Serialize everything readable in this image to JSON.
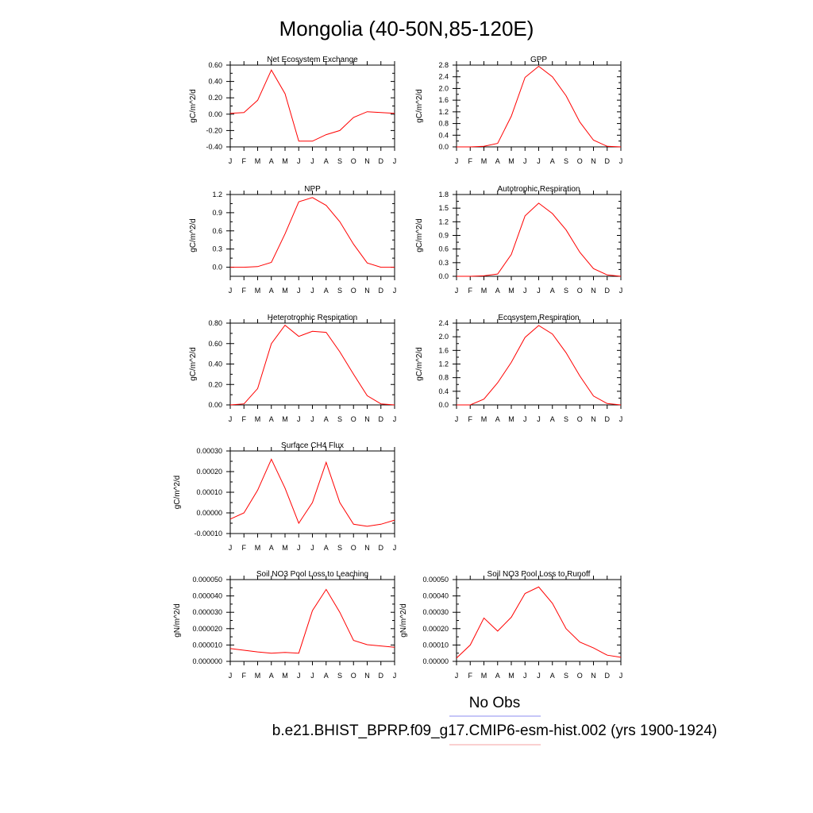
{
  "title": "Mongolia (40-50N,85-120E)",
  "month_labels": [
    "J",
    "F",
    "M",
    "A",
    "M",
    "J",
    "J",
    "A",
    "S",
    "O",
    "N",
    "D",
    "J"
  ],
  "colors": {
    "model": "#ff0000",
    "obs": "#8c8cf0",
    "model_legend": "#f4a0a0",
    "axis": "#000000"
  },
  "legend": {
    "obs_label": "No Obs",
    "model_label": "b.e21.BHIST_BPRP.f09_g17.CMIP6-esm-hist.002 (yrs 1900-1924)"
  },
  "chart_data": [
    {
      "type": "line",
      "title": "Net Ecosystem Exchange",
      "ylabel": "gC/m^2/d",
      "ylim": [
        -0.4,
        0.6
      ],
      "yticks": [
        -0.4,
        -0.2,
        0.0,
        0.2,
        0.4,
        0.6
      ],
      "ytick_labels": [
        "-0.40",
        "-0.20",
        "0.00",
        "0.20",
        "0.40",
        "0.60"
      ],
      "x": [
        "J",
        "F",
        "M",
        "A",
        "M",
        "J",
        "J",
        "A",
        "S",
        "O",
        "N",
        "D",
        "J"
      ],
      "values": [
        0.01,
        0.02,
        0.17,
        0.54,
        0.25,
        -0.33,
        -0.33,
        -0.25,
        -0.2,
        -0.04,
        0.03,
        0.02,
        0.01
      ]
    },
    {
      "type": "line",
      "title": "GPP",
      "ylabel": "gC/m^2/d",
      "ylim": [
        0.0,
        2.8
      ],
      "yticks": [
        0.0,
        0.4,
        0.8,
        1.2,
        1.6,
        2.0,
        2.4,
        2.8
      ],
      "ytick_labels": [
        "0.0",
        "0.4",
        "0.8",
        "1.2",
        "1.6",
        "2.0",
        "2.4",
        "2.8"
      ],
      "x": [
        "J",
        "F",
        "M",
        "A",
        "M",
        "J",
        "J",
        "A",
        "S",
        "O",
        "N",
        "D",
        "J"
      ],
      "values": [
        0.0,
        0.0,
        0.02,
        0.12,
        1.05,
        2.38,
        2.76,
        2.4,
        1.75,
        0.85,
        0.23,
        0.02,
        0.0
      ]
    },
    {
      "type": "line",
      "title": "NPP",
      "ylabel": "gC/m^2/d",
      "ylim": [
        -0.15,
        1.2
      ],
      "yticks": [
        0.0,
        0.3,
        0.6,
        0.9,
        1.2
      ],
      "ytick_labels": [
        "0.0",
        "0.3",
        "0.6",
        "0.9",
        "1.2"
      ],
      "x": [
        "J",
        "F",
        "M",
        "A",
        "M",
        "J",
        "J",
        "A",
        "S",
        "O",
        "N",
        "D",
        "J"
      ],
      "values": [
        0.0,
        0.0,
        0.01,
        0.08,
        0.55,
        1.08,
        1.15,
        1.02,
        0.75,
        0.38,
        0.07,
        0.0,
        0.0
      ]
    },
    {
      "type": "line",
      "title": "Autotrophic Respiration",
      "ylabel": "gC/m^2/d",
      "ylim": [
        0.0,
        1.8
      ],
      "yticks": [
        0.0,
        0.3,
        0.6,
        0.9,
        1.2,
        1.5,
        1.8
      ],
      "ytick_labels": [
        "0.0",
        "0.3",
        "0.6",
        "0.9",
        "1.2",
        "1.5",
        "1.8"
      ],
      "x": [
        "J",
        "F",
        "M",
        "A",
        "M",
        "J",
        "J",
        "A",
        "S",
        "O",
        "N",
        "D",
        "J"
      ],
      "values": [
        0.0,
        0.0,
        0.01,
        0.05,
        0.48,
        1.33,
        1.61,
        1.38,
        1.02,
        0.53,
        0.17,
        0.03,
        0.0
      ]
    },
    {
      "type": "line",
      "title": "Heterotrophic Respiration",
      "ylabel": "gC/m^2/d",
      "ylim": [
        0.0,
        0.8
      ],
      "yticks": [
        0.0,
        0.2,
        0.4,
        0.6,
        0.8
      ],
      "ytick_labels": [
        "0.00",
        "0.20",
        "0.40",
        "0.60",
        "0.80"
      ],
      "x": [
        "J",
        "F",
        "M",
        "A",
        "M",
        "J",
        "J",
        "A",
        "S",
        "O",
        "N",
        "D",
        "J"
      ],
      "values": [
        0.0,
        0.01,
        0.16,
        0.6,
        0.78,
        0.67,
        0.72,
        0.71,
        0.52,
        0.3,
        0.09,
        0.01,
        0.0
      ]
    },
    {
      "type": "line",
      "title": "Ecosystem Respiration",
      "ylabel": "gC/m^2/d",
      "ylim": [
        0.0,
        2.4
      ],
      "yticks": [
        0.0,
        0.4,
        0.8,
        1.2,
        1.6,
        2.0,
        2.4
      ],
      "ytick_labels": [
        "0.0",
        "0.4",
        "0.8",
        "1.2",
        "1.6",
        "2.0",
        "2.4"
      ],
      "x": [
        "J",
        "F",
        "M",
        "A",
        "M",
        "J",
        "J",
        "A",
        "S",
        "O",
        "N",
        "D",
        "J"
      ],
      "values": [
        0.0,
        0.0,
        0.17,
        0.65,
        1.25,
        1.98,
        2.33,
        2.08,
        1.53,
        0.85,
        0.26,
        0.04,
        0.0
      ]
    },
    {
      "type": "line",
      "title": "Surface CH4 Flux",
      "ylabel": "gC/m^2/d",
      "ylim": [
        -0.0001,
        0.0003
      ],
      "yticks": [
        -0.0001,
        0.0,
        0.0001,
        0.0002,
        0.0003
      ],
      "ytick_labels": [
        "-0.00010",
        "0.00000",
        "0.00010",
        "0.00020",
        "0.00030"
      ],
      "x": [
        "J",
        "F",
        "M",
        "A",
        "M",
        "J",
        "J",
        "A",
        "S",
        "O",
        "N",
        "D",
        "J"
      ],
      "values": [
        -3e-05,
        0.0,
        0.00011,
        0.00026,
        0.00012,
        -5e-05,
        5e-05,
        0.000245,
        5e-05,
        -5.5e-05,
        -6.5e-05,
        -5.5e-05,
        -3.5e-05
      ]
    },
    {
      "type": "line",
      "title": "Soil NO3 Pool Loss to Leaching",
      "ylabel": "gN/m^2/d",
      "ylim": [
        0.0,
        5e-05
      ],
      "yticks": [
        0.0,
        1e-05,
        2e-05,
        3e-05,
        4e-05,
        5e-05
      ],
      "ytick_labels": [
        "0.000000",
        "0.000010",
        "0.000020",
        "0.000030",
        "0.000040",
        "0.000050"
      ],
      "x": [
        "J",
        "F",
        "M",
        "A",
        "M",
        "J",
        "J",
        "A",
        "S",
        "O",
        "N",
        "D",
        "J"
      ],
      "values": [
        7.8e-06,
        6.8e-06,
        5.8e-06,
        5e-06,
        5.5e-06,
        5e-06,
        3.1e-05,
        4.4e-05,
        3e-05,
        1.28e-05,
        1.02e-05,
        9.4e-06,
        8.6e-06
      ]
    },
    {
      "type": "line",
      "title": "Soil NO3 Pool Loss to Runoff",
      "ylabel": "gN/m^2/d",
      "ylim": [
        0.0,
        0.0005
      ],
      "yticks": [
        0.0,
        0.0001,
        0.0002,
        0.0003,
        0.0004,
        0.0005
      ],
      "ytick_labels": [
        "0.00000",
        "0.00010",
        "0.00020",
        "0.00030",
        "0.00040",
        "0.00050"
      ],
      "x": [
        "J",
        "F",
        "M",
        "A",
        "M",
        "J",
        "J",
        "A",
        "S",
        "O",
        "N",
        "D",
        "J"
      ],
      "values": [
        2e-05,
        0.0001,
        0.000265,
        0.000185,
        0.00027,
        0.000415,
        0.000455,
        0.000355,
        0.0002,
        0.000118,
        8.2e-05,
        3.8e-05,
        2.5e-05
      ]
    }
  ]
}
